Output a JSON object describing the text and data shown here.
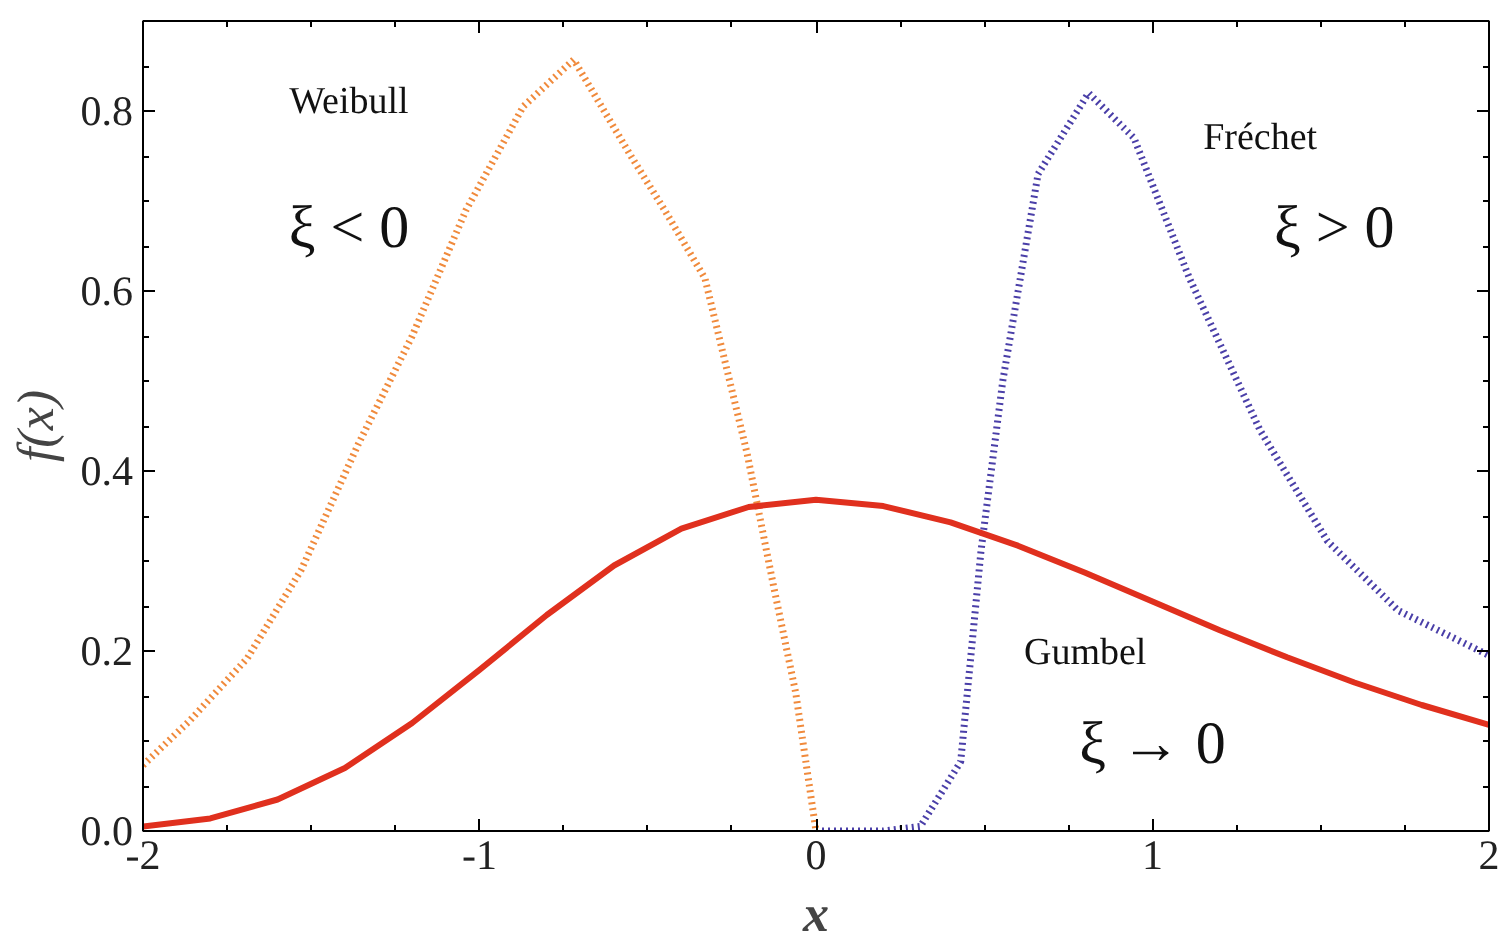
{
  "chart_data": {
    "type": "line",
    "xlabel": "x",
    "ylabel": "f(x)",
    "xlim": [
      -2,
      2
    ],
    "ylim": [
      0,
      0.9
    ],
    "xticks": [
      -2,
      -1,
      0,
      1,
      2
    ],
    "yticks": [
      {
        "value": 0,
        "label": "0.0"
      },
      {
        "value": 0.2,
        "label": "0.2"
      },
      {
        "value": 0.4,
        "label": "0.4"
      },
      {
        "value": 0.6,
        "label": "0.6"
      },
      {
        "value": 0.8,
        "label": "0.8"
      }
    ],
    "grid": false,
    "series": [
      {
        "name": "Weibull",
        "color": "#f08a3c",
        "line_style": "dotted",
        "x": [
          -2,
          -1.86,
          -1.69,
          -1.53,
          -1.36,
          -1.2,
          -1.04,
          -0.87,
          -0.72,
          -0.55,
          -0.45,
          -0.33,
          -0.205,
          -0.125,
          -0.06,
          0
        ],
        "values": [
          0.073,
          0.123,
          0.192,
          0.29,
          0.43,
          0.55,
          0.69,
          0.805,
          0.857,
          0.75,
          0.69,
          0.614,
          0.42,
          0.27,
          0.153,
          0
        ]
      },
      {
        "name": "Fréchet",
        "color": "#4a3fa8",
        "line_style": "dotted",
        "x": [
          0,
          0.2,
          0.31,
          0.43,
          0.49,
          0.555,
          0.66,
          0.81,
          0.945,
          1.11,
          1.32,
          1.52,
          1.73,
          2
        ],
        "values": [
          0,
          0,
          0.005,
          0.077,
          0.31,
          0.5,
          0.73,
          0.82,
          0.77,
          0.614,
          0.445,
          0.322,
          0.245,
          0.195
        ]
      },
      {
        "name": "Gumbel",
        "color": "#e0301e",
        "line_style": "solid",
        "x": [
          -2,
          -1.8,
          -1.6,
          -1.4,
          -1.2,
          -1,
          -0.8,
          -0.6,
          -0.4,
          -0.2,
          0,
          0.2,
          0.4,
          0.6,
          0.8,
          1,
          1.2,
          1.4,
          1.6,
          1.8,
          2
        ],
        "values": [
          0.005,
          0.014,
          0.035,
          0.07,
          0.12,
          0.179,
          0.24,
          0.295,
          0.336,
          0.36,
          0.368,
          0.361,
          0.343,
          0.317,
          0.287,
          0.255,
          0.223,
          0.193,
          0.165,
          0.14,
          0.118
        ]
      }
    ],
    "annotations": [
      "ξ < 0",
      "ξ > 0",
      "ξ → 0"
    ]
  }
}
